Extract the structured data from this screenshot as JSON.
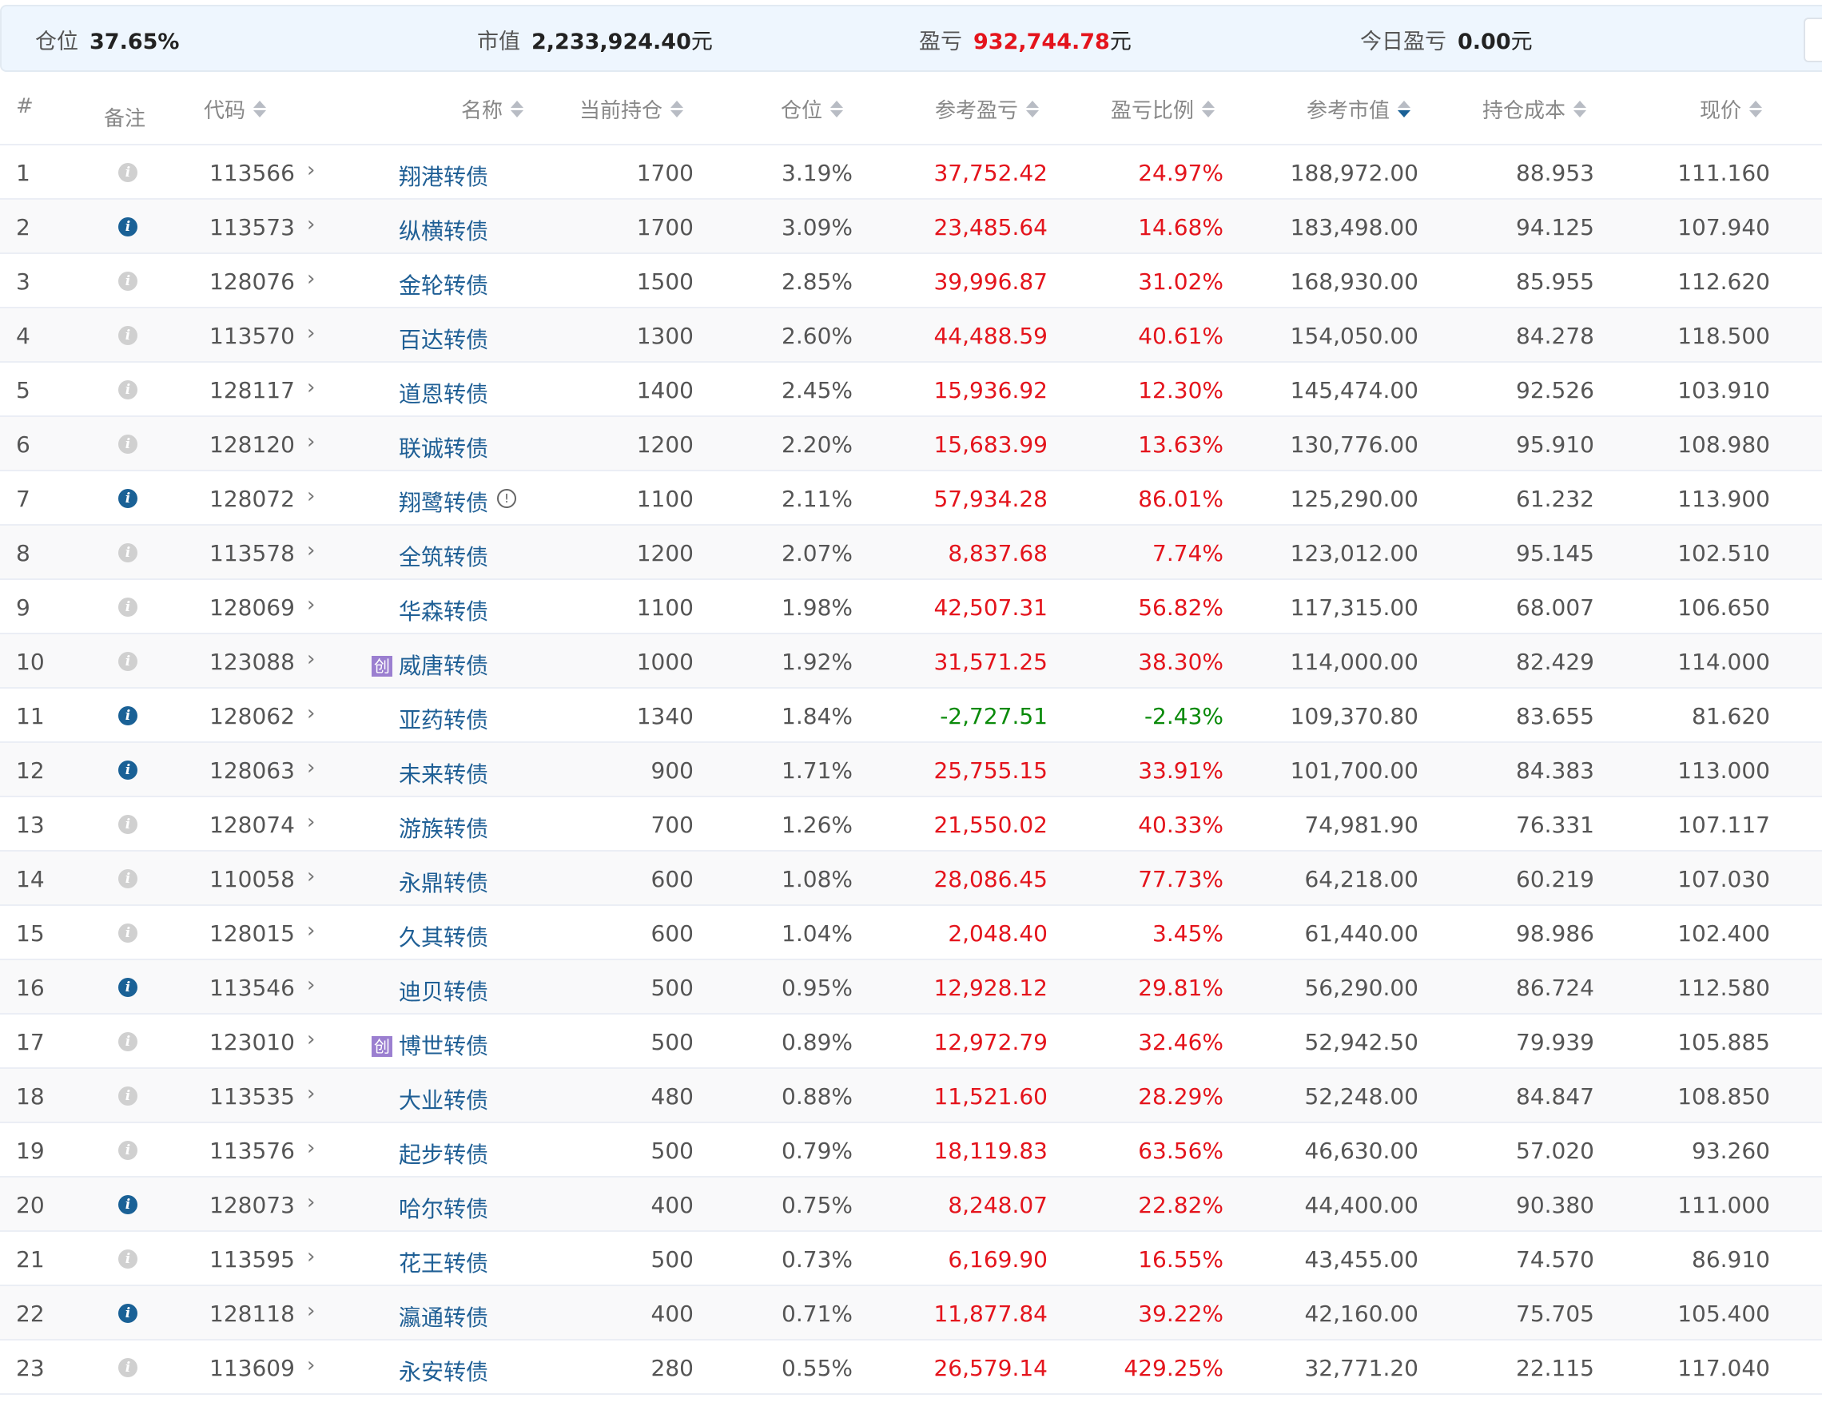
{
  "summary": {
    "position": {
      "label": "仓位",
      "value": "37.65%"
    },
    "market_value": {
      "label": "市值",
      "value": "2,233,924.40",
      "unit": "元"
    },
    "pnl": {
      "label": "盈亏",
      "value": "932,744.78",
      "unit": "元"
    },
    "today_pnl": {
      "label": "今日盈亏",
      "value": "0.00",
      "unit": "元"
    }
  },
  "colors": {
    "profit": "#e4141c",
    "loss": "#0a8a0a",
    "link": "#1f5f95",
    "info_active": "#1a6196",
    "badge": "#9b7fd0"
  },
  "columns": [
    "#",
    "备注",
    "代码",
    "名称",
    "当前持仓",
    "仓位",
    "参考盈亏",
    "盈亏比例",
    "参考市值",
    "持仓成本",
    "现价"
  ],
  "sorted_column": "参考市值",
  "sorted_direction": "descending",
  "badge_text": "创",
  "rows": [
    {
      "n": "1",
      "note": false,
      "code": "113566",
      "name": "翔港转债",
      "qty": "1700",
      "pos": "3.19%",
      "pnl": "37,752.42",
      "ratio": "24.97%",
      "mv": "188,972.00",
      "cost": "88.953",
      "price": "111.160"
    },
    {
      "n": "2",
      "note": true,
      "code": "113573",
      "name": "纵横转债",
      "qty": "1700",
      "pos": "3.09%",
      "pnl": "23,485.64",
      "ratio": "14.68%",
      "mv": "183,498.00",
      "cost": "94.125",
      "price": "107.940"
    },
    {
      "n": "3",
      "note": false,
      "code": "128076",
      "name": "金轮转债",
      "qty": "1500",
      "pos": "2.85%",
      "pnl": "39,996.87",
      "ratio": "31.02%",
      "mv": "168,930.00",
      "cost": "85.955",
      "price": "112.620"
    },
    {
      "n": "4",
      "note": false,
      "code": "113570",
      "name": "百达转债",
      "qty": "1300",
      "pos": "2.60%",
      "pnl": "44,488.59",
      "ratio": "40.61%",
      "mv": "154,050.00",
      "cost": "84.278",
      "price": "118.500"
    },
    {
      "n": "5",
      "note": false,
      "code": "128117",
      "name": "道恩转债",
      "qty": "1400",
      "pos": "2.45%",
      "pnl": "15,936.92",
      "ratio": "12.30%",
      "mv": "145,474.00",
      "cost": "92.526",
      "price": "103.910"
    },
    {
      "n": "6",
      "note": false,
      "code": "128120",
      "name": "联诚转债",
      "qty": "1200",
      "pos": "2.20%",
      "pnl": "15,683.99",
      "ratio": "13.63%",
      "mv": "130,776.00",
      "cost": "95.910",
      "price": "108.980"
    },
    {
      "n": "7",
      "note": true,
      "code": "128072",
      "name": "翔鹭转债",
      "warn": true,
      "qty": "1100",
      "pos": "2.11%",
      "pnl": "57,934.28",
      "ratio": "86.01%",
      "mv": "125,290.00",
      "cost": "61.232",
      "price": "113.900"
    },
    {
      "n": "8",
      "note": false,
      "code": "113578",
      "name": "全筑转债",
      "qty": "1200",
      "pos": "2.07%",
      "pnl": "8,837.68",
      "ratio": "7.74%",
      "mv": "123,012.00",
      "cost": "95.145",
      "price": "102.510"
    },
    {
      "n": "9",
      "note": false,
      "code": "128069",
      "name": "华森转债",
      "qty": "1100",
      "pos": "1.98%",
      "pnl": "42,507.31",
      "ratio": "56.82%",
      "mv": "117,315.00",
      "cost": "68.007",
      "price": "106.650"
    },
    {
      "n": "10",
      "note": false,
      "code": "123088",
      "name": "威唐转债",
      "badge": true,
      "qty": "1000",
      "pos": "1.92%",
      "pnl": "31,571.25",
      "ratio": "38.30%",
      "mv": "114,000.00",
      "cost": "82.429",
      "price": "114.000"
    },
    {
      "n": "11",
      "note": true,
      "code": "128062",
      "name": "亚药转债",
      "qty": "1340",
      "pos": "1.84%",
      "pnl": "-2,727.51",
      "ratio": "-2.43%",
      "mv": "109,370.80",
      "cost": "83.655",
      "price": "81.620"
    },
    {
      "n": "12",
      "note": true,
      "code": "128063",
      "name": "未来转债",
      "qty": "900",
      "pos": "1.71%",
      "pnl": "25,755.15",
      "ratio": "33.91%",
      "mv": "101,700.00",
      "cost": "84.383",
      "price": "113.000"
    },
    {
      "n": "13",
      "note": false,
      "code": "128074",
      "name": "游族转债",
      "qty": "700",
      "pos": "1.26%",
      "pnl": "21,550.02",
      "ratio": "40.33%",
      "mv": "74,981.90",
      "cost": "76.331",
      "price": "107.117"
    },
    {
      "n": "14",
      "note": false,
      "code": "110058",
      "name": "永鼎转债",
      "qty": "600",
      "pos": "1.08%",
      "pnl": "28,086.45",
      "ratio": "77.73%",
      "mv": "64,218.00",
      "cost": "60.219",
      "price": "107.030"
    },
    {
      "n": "15",
      "note": false,
      "code": "128015",
      "name": "久其转债",
      "qty": "600",
      "pos": "1.04%",
      "pnl": "2,048.40",
      "ratio": "3.45%",
      "mv": "61,440.00",
      "cost": "98.986",
      "price": "102.400"
    },
    {
      "n": "16",
      "note": true,
      "code": "113546",
      "name": "迪贝转债",
      "qty": "500",
      "pos": "0.95%",
      "pnl": "12,928.12",
      "ratio": "29.81%",
      "mv": "56,290.00",
      "cost": "86.724",
      "price": "112.580"
    },
    {
      "n": "17",
      "note": false,
      "code": "123010",
      "name": "博世转债",
      "badge": true,
      "qty": "500",
      "pos": "0.89%",
      "pnl": "12,972.79",
      "ratio": "32.46%",
      "mv": "52,942.50",
      "cost": "79.939",
      "price": "105.885"
    },
    {
      "n": "18",
      "note": false,
      "code": "113535",
      "name": "大业转债",
      "qty": "480",
      "pos": "0.88%",
      "pnl": "11,521.60",
      "ratio": "28.29%",
      "mv": "52,248.00",
      "cost": "84.847",
      "price": "108.850"
    },
    {
      "n": "19",
      "note": false,
      "code": "113576",
      "name": "起步转债",
      "qty": "500",
      "pos": "0.79%",
      "pnl": "18,119.83",
      "ratio": "63.56%",
      "mv": "46,630.00",
      "cost": "57.020",
      "price": "93.260"
    },
    {
      "n": "20",
      "note": true,
      "code": "128073",
      "name": "哈尔转债",
      "qty": "400",
      "pos": "0.75%",
      "pnl": "8,248.07",
      "ratio": "22.82%",
      "mv": "44,400.00",
      "cost": "90.380",
      "price": "111.000"
    },
    {
      "n": "21",
      "note": false,
      "code": "113595",
      "name": "花王转债",
      "qty": "500",
      "pos": "0.73%",
      "pnl": "6,169.90",
      "ratio": "16.55%",
      "mv": "43,455.00",
      "cost": "74.570",
      "price": "86.910"
    },
    {
      "n": "22",
      "note": true,
      "code": "128118",
      "name": "瀛通转债",
      "qty": "400",
      "pos": "0.71%",
      "pnl": "11,877.84",
      "ratio": "39.22%",
      "mv": "42,160.00",
      "cost": "75.705",
      "price": "105.400"
    },
    {
      "n": "23",
      "note": false,
      "code": "113609",
      "name": "永安转债",
      "qty": "280",
      "pos": "0.55%",
      "pnl": "26,579.14",
      "ratio": "429.25%",
      "mv": "32,771.20",
      "cost": "22.115",
      "price": "117.040"
    }
  ]
}
